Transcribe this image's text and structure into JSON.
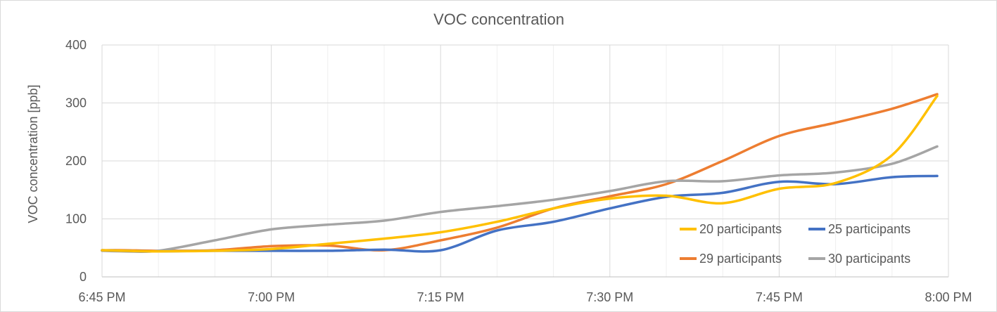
{
  "chart_data": {
    "type": "line",
    "title": "VOC concentration",
    "xlabel": "",
    "ylabel": "VOC concentration [ppb]",
    "x_unit": "time",
    "x_ticks": [
      "6:45 PM",
      "7:00 PM",
      "7:15 PM",
      "7:30 PM",
      "7:45 PM",
      "8:00 PM"
    ],
    "x": [
      "6:45 PM",
      "6:47 PM",
      "6:50 PM",
      "6:55 PM",
      "7:00 PM",
      "7:05 PM",
      "7:10 PM",
      "7:15 PM",
      "7:20 PM",
      "7:25 PM",
      "7:30 PM",
      "7:35 PM",
      "7:40 PM",
      "7:45 PM",
      "7:50 PM",
      "7:55 PM",
      "7:59 PM"
    ],
    "ylim": [
      0,
      400
    ],
    "y_ticks": [
      0,
      100,
      200,
      300,
      400
    ],
    "grid": true,
    "legend_position": "bottom-right",
    "series": [
      {
        "name": "20 participants",
        "color": "#FFC000",
        "values": [
          46,
          45,
          44,
          45,
          48,
          57,
          66,
          77,
          95,
          118,
          135,
          140,
          127,
          152,
          162,
          210,
          312
        ]
      },
      {
        "name": "25 participants",
        "color": "#4472C4",
        "values": [
          46,
          45,
          44,
          45,
          45,
          45,
          47,
          46,
          80,
          95,
          118,
          138,
          145,
          164,
          160,
          172,
          174
        ]
      },
      {
        "name": "29 participants",
        "color": "#ED7D31",
        "values": [
          46,
          46,
          45,
          46,
          53,
          54,
          46,
          63,
          85,
          118,
          139,
          160,
          200,
          243,
          266,
          290,
          315
        ]
      },
      {
        "name": "30 participants",
        "color": "#A5A5A5",
        "values": [
          45,
          44,
          45,
          63,
          82,
          90,
          97,
          112,
          122,
          133,
          148,
          165,
          165,
          175,
          180,
          195,
          225
        ]
      }
    ]
  }
}
